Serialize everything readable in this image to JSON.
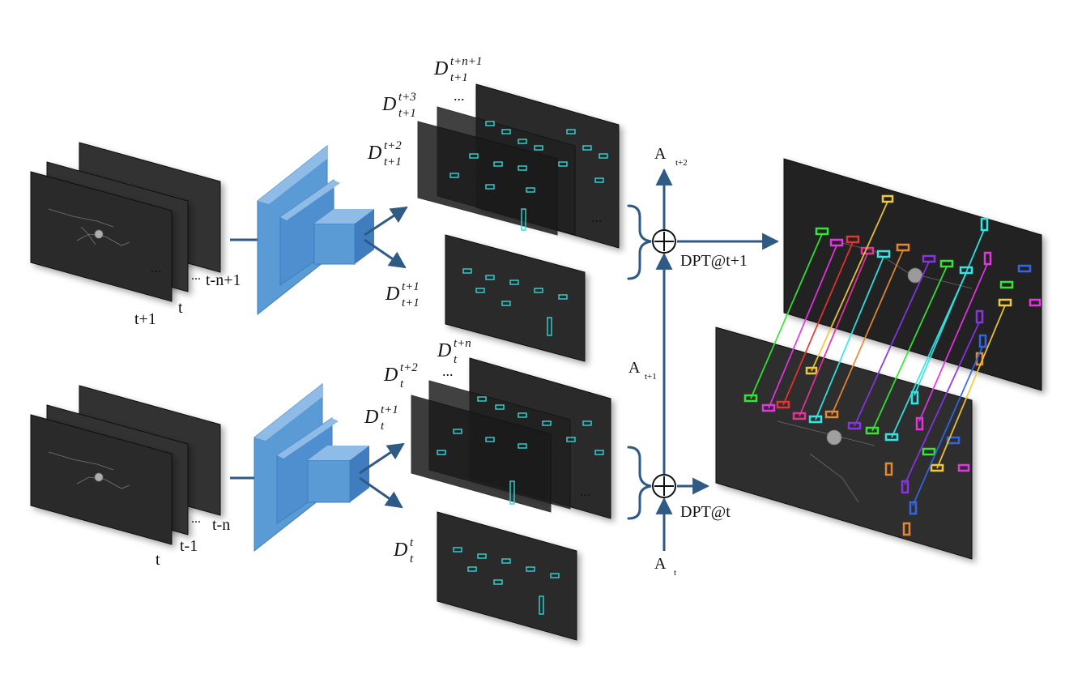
{
  "colors": {
    "frame_dark": "#2d2d2d",
    "frame_mid": "#3c3c3c",
    "connector": "#2f5a86",
    "cnn_front": "#5b9bd5",
    "cnn_top": "#8fbce6",
    "cnn_side": "#3f7dbf",
    "box_cyan": "#33d6d6"
  },
  "icons": {
    "sum": "circled-plus-icon",
    "arrow": "arrow-icon"
  },
  "input_top": {
    "labels": [
      "t+1",
      "t",
      "t-n+1"
    ],
    "ellipsis": "..."
  },
  "input_bottom": {
    "labels": [
      "t",
      "t-1",
      "t-n"
    ],
    "ellipsis": "..."
  },
  "det_top": {
    "stack_labels": [
      {
        "base": "D",
        "sup": "t+n+1",
        "sub": "t+1"
      },
      {
        "base": "D",
        "sup": "t+3",
        "sub": "t+1"
      },
      {
        "base": "D",
        "sup": "t+2",
        "sub": "t+1"
      }
    ],
    "single_label": {
      "base": "D",
      "sup": "t+1",
      "sub": "t+1"
    },
    "ellipsis": "..."
  },
  "det_bottom": {
    "stack_labels": [
      {
        "base": "D",
        "sup": "t+n",
        "sub": "t"
      },
      {
        "base": "D",
        "sup": "t+2",
        "sub": "t"
      },
      {
        "base": "D",
        "sup": "t+1",
        "sub": "t"
      }
    ],
    "single_label": {
      "base": "D",
      "sup": "t",
      "sub": "t"
    },
    "ellipsis": "..."
  },
  "assoc": {
    "a_top": {
      "base": "A",
      "sub": "t+2"
    },
    "a_mid": {
      "base": "A",
      "sub": "t+1"
    },
    "a_bot": {
      "base": "A",
      "sub": "t"
    },
    "dpt_top": "DPT@t+1",
    "dpt_bottom": "DPT@t"
  }
}
